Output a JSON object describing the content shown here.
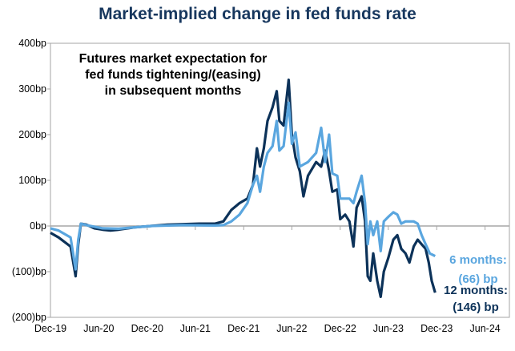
{
  "chart_data": {
    "type": "line",
    "title": "Market-implied change in fed funds rate",
    "annotation": [
      "Futures market expectation for",
      "fed funds tightening/(easing)",
      "in subsequent months"
    ],
    "xlabel": "",
    "ylabel": "",
    "ylim": [
      -200,
      400
    ],
    "xlim": [
      "2019-12-01",
      "2024-09-01"
    ],
    "y_ticks": [
      400,
      300,
      200,
      100,
      0,
      -100,
      -200
    ],
    "y_tick_labels": [
      "400bp",
      "300bp",
      "200bp",
      "100bp",
      "0bp",
      "(100)bp",
      "(200)bp"
    ],
    "x_ticks": [
      "2019-12-01",
      "2020-06-01",
      "2020-12-01",
      "2021-06-01",
      "2021-12-01",
      "2022-06-01",
      "2022-12-01",
      "2023-06-01",
      "2023-12-01",
      "2024-06-01"
    ],
    "x_tick_labels": [
      "Dec-19",
      "Jun-20",
      "Dec-20",
      "Jun-21",
      "Dec-21",
      "Jun-22",
      "Dec-22",
      "Jun-23",
      "Dec-23",
      "Jun-24"
    ],
    "grid": false,
    "series": [
      {
        "name": "12 months",
        "end_label": [
          "12 months:",
          "(146) bp"
        ],
        "color": "#0c3259",
        "points": [
          [
            "2019-12-01",
            -15
          ],
          [
            "2020-01-01",
            -25
          ],
          [
            "2020-02-15",
            -45
          ],
          [
            "2020-03-05",
            -110
          ],
          [
            "2020-03-15",
            -40
          ],
          [
            "2020-03-25",
            5
          ],
          [
            "2020-04-15",
            3
          ],
          [
            "2020-05-15",
            -5
          ],
          [
            "2020-06-15",
            -8
          ],
          [
            "2020-07-15",
            -10
          ],
          [
            "2020-08-15",
            -8
          ],
          [
            "2020-10-15",
            -3
          ],
          [
            "2020-12-15",
            0
          ],
          [
            "2021-02-15",
            3
          ],
          [
            "2021-04-15",
            4
          ],
          [
            "2021-06-15",
            5
          ],
          [
            "2021-08-15",
            5
          ],
          [
            "2021-09-15",
            10
          ],
          [
            "2021-10-15",
            35
          ],
          [
            "2021-11-15",
            50
          ],
          [
            "2021-12-15",
            60
          ],
          [
            "2022-01-05",
            90
          ],
          [
            "2022-01-20",
            170
          ],
          [
            "2022-02-01",
            130
          ],
          [
            "2022-02-15",
            170
          ],
          [
            "2022-03-01",
            230
          ],
          [
            "2022-03-20",
            260
          ],
          [
            "2022-04-05",
            295
          ],
          [
            "2022-04-15",
            230
          ],
          [
            "2022-05-01",
            220
          ],
          [
            "2022-05-20",
            320
          ],
          [
            "2022-06-01",
            200
          ],
          [
            "2022-06-15",
            150
          ],
          [
            "2022-07-01",
            120
          ],
          [
            "2022-07-15",
            65
          ],
          [
            "2022-08-01",
            110
          ],
          [
            "2022-09-01",
            140
          ],
          [
            "2022-09-20",
            130
          ],
          [
            "2022-10-05",
            165
          ],
          [
            "2022-10-20",
            120
          ],
          [
            "2022-11-01",
            75
          ],
          [
            "2022-11-20",
            80
          ],
          [
            "2022-12-01",
            15
          ],
          [
            "2022-12-20",
            25
          ],
          [
            "2023-01-05",
            10
          ],
          [
            "2023-01-20",
            -45
          ],
          [
            "2023-02-01",
            40
          ],
          [
            "2023-02-20",
            65
          ],
          [
            "2023-03-05",
            10
          ],
          [
            "2023-03-15",
            -110
          ],
          [
            "2023-03-25",
            -120
          ],
          [
            "2023-04-05",
            -60
          ],
          [
            "2023-04-20",
            -120
          ],
          [
            "2023-05-03",
            -155
          ],
          [
            "2023-05-15",
            -100
          ],
          [
            "2023-06-01",
            -70
          ],
          [
            "2023-06-20",
            -30
          ],
          [
            "2023-07-05",
            -20
          ],
          [
            "2023-07-20",
            -50
          ],
          [
            "2023-08-05",
            -60
          ],
          [
            "2023-08-20",
            -80
          ],
          [
            "2023-09-05",
            -45
          ],
          [
            "2023-09-20",
            -30
          ],
          [
            "2023-10-05",
            -40
          ],
          [
            "2023-10-20",
            -50
          ],
          [
            "2023-11-01",
            -80
          ],
          [
            "2023-11-12",
            -120
          ],
          [
            "2023-11-25",
            -146
          ]
        ]
      },
      {
        "name": "6 months",
        "end_label": [
          "6 months:",
          "(66) bp"
        ],
        "color": "#5aa6df",
        "points": [
          [
            "2019-12-01",
            -5
          ],
          [
            "2020-01-01",
            -10
          ],
          [
            "2020-02-15",
            -25
          ],
          [
            "2020-03-05",
            -95
          ],
          [
            "2020-03-15",
            -30
          ],
          [
            "2020-03-25",
            5
          ],
          [
            "2020-04-15",
            2
          ],
          [
            "2020-06-15",
            -5
          ],
          [
            "2020-08-15",
            -6
          ],
          [
            "2020-12-15",
            0
          ],
          [
            "2021-04-15",
            2
          ],
          [
            "2021-08-15",
            1
          ],
          [
            "2021-09-15",
            2
          ],
          [
            "2021-10-15",
            10
          ],
          [
            "2021-11-15",
            25
          ],
          [
            "2021-12-15",
            50
          ],
          [
            "2022-01-05",
            90
          ],
          [
            "2022-01-20",
            110
          ],
          [
            "2022-02-01",
            75
          ],
          [
            "2022-02-15",
            130
          ],
          [
            "2022-03-01",
            160
          ],
          [
            "2022-03-20",
            175
          ],
          [
            "2022-04-05",
            230
          ],
          [
            "2022-04-15",
            165
          ],
          [
            "2022-05-01",
            175
          ],
          [
            "2022-05-20",
            270
          ],
          [
            "2022-06-01",
            180
          ],
          [
            "2022-06-15",
            205
          ],
          [
            "2022-07-01",
            130
          ],
          [
            "2022-08-01",
            140
          ],
          [
            "2022-09-01",
            160
          ],
          [
            "2022-09-20",
            215
          ],
          [
            "2022-10-05",
            140
          ],
          [
            "2022-10-20",
            200
          ],
          [
            "2022-11-01",
            115
          ],
          [
            "2022-11-20",
            110
          ],
          [
            "2022-12-01",
            60
          ],
          [
            "2022-12-20",
            60
          ],
          [
            "2023-01-05",
            60
          ],
          [
            "2023-01-20",
            50
          ],
          [
            "2023-02-01",
            75
          ],
          [
            "2023-02-20",
            110
          ],
          [
            "2023-03-05",
            50
          ],
          [
            "2023-03-15",
            -40
          ],
          [
            "2023-03-25",
            10
          ],
          [
            "2023-04-05",
            -20
          ],
          [
            "2023-04-20",
            10
          ],
          [
            "2023-05-03",
            -55
          ],
          [
            "2023-05-15",
            10
          ],
          [
            "2023-06-01",
            20
          ],
          [
            "2023-06-20",
            30
          ],
          [
            "2023-07-05",
            25
          ],
          [
            "2023-07-20",
            5
          ],
          [
            "2023-08-05",
            10
          ],
          [
            "2023-08-20",
            10
          ],
          [
            "2023-09-05",
            10
          ],
          [
            "2023-09-20",
            5
          ],
          [
            "2023-10-05",
            -20
          ],
          [
            "2023-10-20",
            -40
          ],
          [
            "2023-11-05",
            -60
          ],
          [
            "2023-11-25",
            -66
          ]
        ]
      }
    ]
  }
}
